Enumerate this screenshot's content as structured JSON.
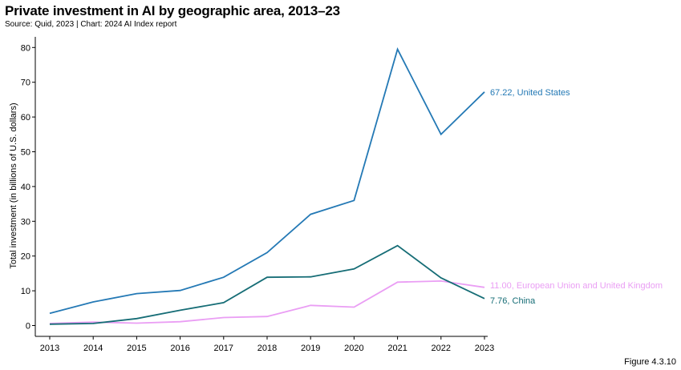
{
  "header": {
    "title": "Private investment in AI by geographic area, 2013–23",
    "subtitle": "Source: Quid, 2023 | Chart: 2024 AI Index report"
  },
  "footer": {
    "figure_label": "Figure 4.3.10"
  },
  "chart_data": {
    "type": "line",
    "title": "Private investment in AI by geographic area, 2013–23",
    "subtitle": "Source: Quid, 2023 | Chart: 2024 AI Index report",
    "xlabel": "",
    "ylabel": "Total investment (in billions of U.S. dollars)",
    "x": [
      "2013",
      "2014",
      "2015",
      "2016",
      "2017",
      "2018",
      "2019",
      "2020",
      "2021",
      "2022",
      "2023"
    ],
    "yticks": [
      "0",
      "10",
      "20",
      "30",
      "40",
      "50",
      "60",
      "70",
      "80"
    ],
    "ylim": [
      -3,
      84
    ],
    "grid": false,
    "legend": "end-of-line labels",
    "series": [
      {
        "name": "United States",
        "end_label": "67.22, United States",
        "color": "#2479b5",
        "values": [
          3.5,
          6.8,
          9.2,
          10.1,
          13.9,
          21.0,
          32.0,
          36.0,
          79.5,
          55.0,
          67.22
        ]
      },
      {
        "name": "European Union and United Kingdom",
        "end_label": "11.00, European Union and United Kingdom",
        "color": "#ea9ef4",
        "values": [
          0.6,
          1.0,
          0.7,
          1.1,
          2.3,
          2.6,
          5.8,
          5.3,
          12.5,
          12.8,
          11.0
        ]
      },
      {
        "name": "China",
        "end_label": "7.76, China",
        "color": "#166d76",
        "values": [
          0.4,
          0.6,
          2.0,
          4.4,
          6.6,
          13.9,
          14.0,
          16.3,
          23.0,
          13.7,
          7.76
        ]
      }
    ]
  }
}
